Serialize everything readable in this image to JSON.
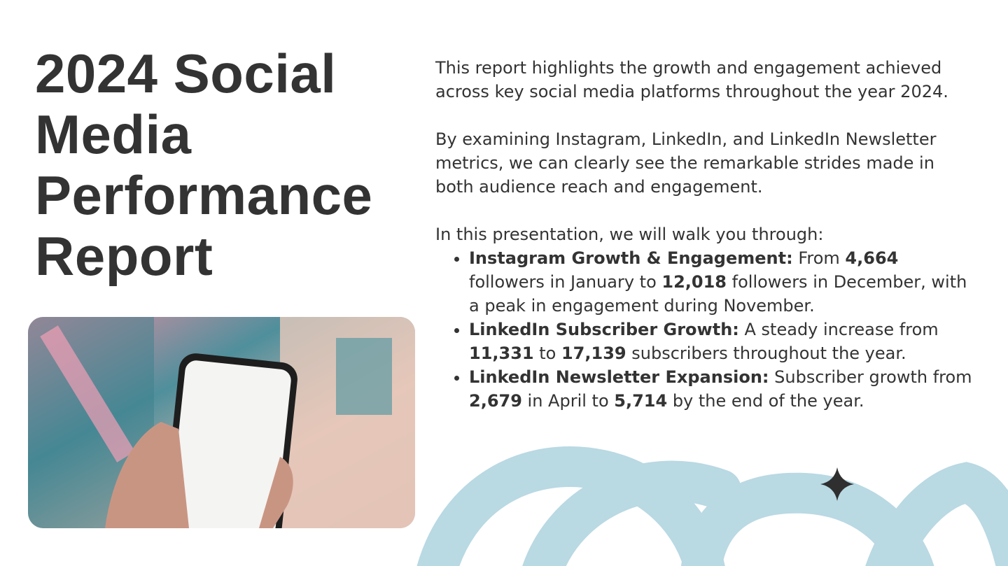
{
  "title": "2024 Social Media Performance Report",
  "paragraphs": [
    "This report highlights the growth and engagement achieved across key social media platforms throughout the year 2024.",
    "By examining Instagram, LinkedIn, and LinkedIn Newsletter metrics, we can clearly see the remarkable strides made in both audience reach and engagement.",
    "In this presentation, we will walk you through:"
  ],
  "bullets": [
    {
      "segments": [
        {
          "text": "Instagram Growth & Engagement:",
          "bold": true
        },
        {
          "text": " From ",
          "bold": false
        },
        {
          "text": "4,664",
          "bold": true
        },
        {
          "text": " followers in January to ",
          "bold": false
        },
        {
          "text": "12,018",
          "bold": true
        },
        {
          "text": " followers in December, with a peak in engagement during November.",
          "bold": false
        }
      ]
    },
    {
      "segments": [
        {
          "text": "LinkedIn Subscriber Growth:",
          "bold": true
        },
        {
          "text": " A steady increase from ",
          "bold": false
        },
        {
          "text": "11,331",
          "bold": true
        },
        {
          "text": " to ",
          "bold": false
        },
        {
          "text": "17,139",
          "bold": true
        },
        {
          "text": " subscribers throughout the year.",
          "bold": false
        }
      ]
    },
    {
      "segments": [
        {
          "text": "LinkedIn Newsletter Expansion:",
          "bold": true
        },
        {
          "text": " Subscriber growth from ",
          "bold": false
        },
        {
          "text": "2,679",
          "bold": true
        },
        {
          "text": " in April to ",
          "bold": false
        },
        {
          "text": "5,714",
          "bold": true
        },
        {
          "text": " by the end of the year.",
          "bold": false
        }
      ]
    }
  ]
}
